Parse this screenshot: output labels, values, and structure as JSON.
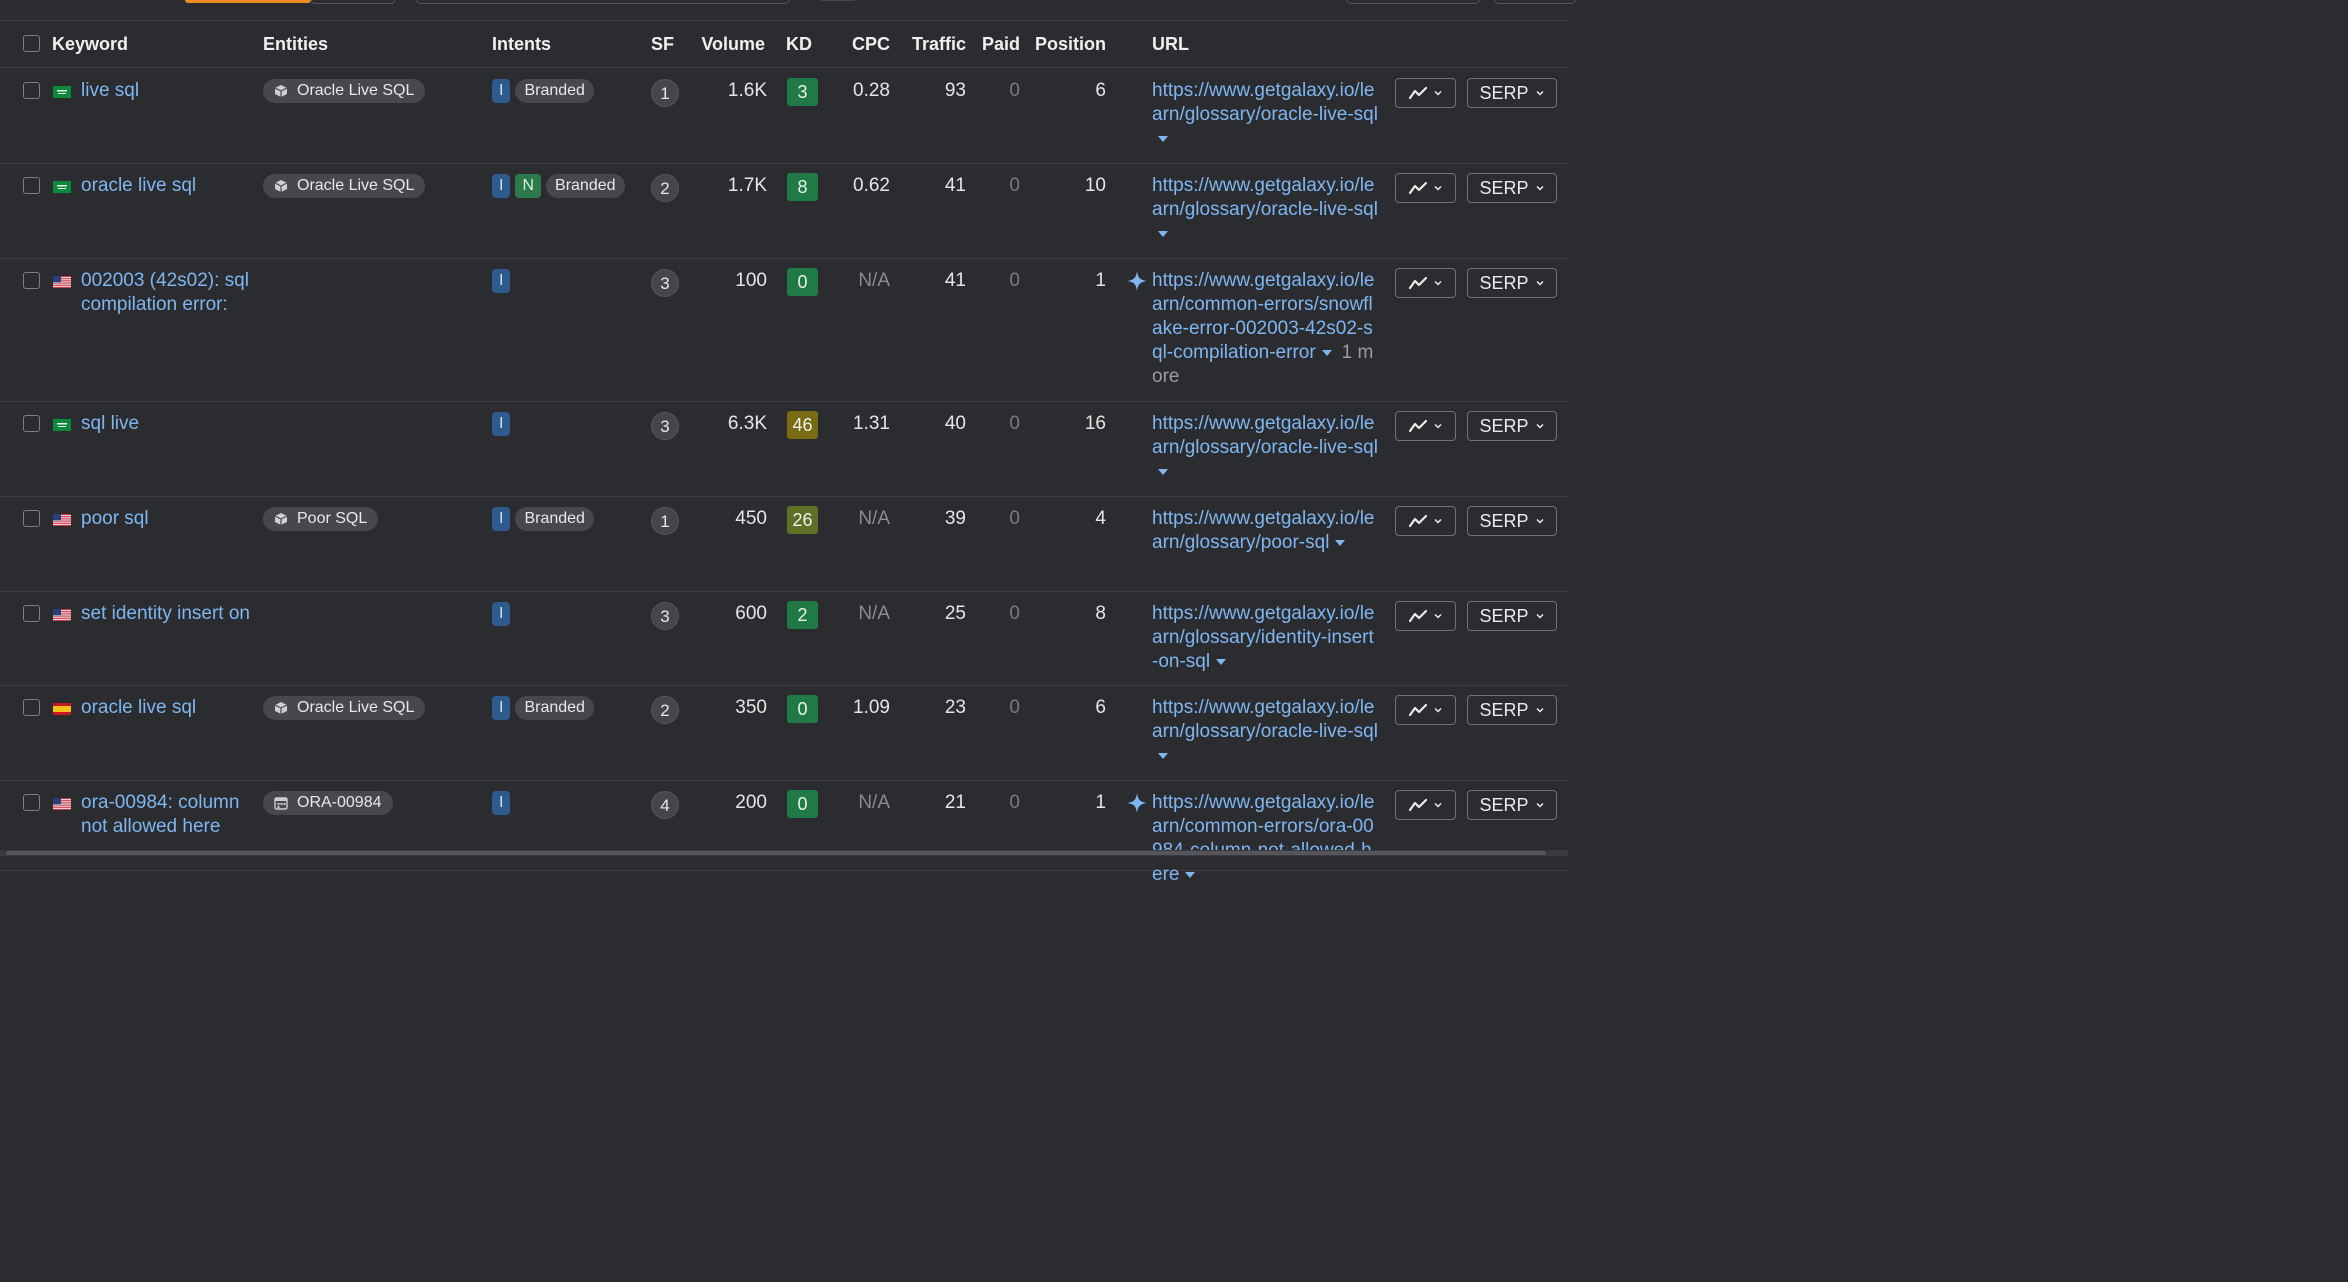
{
  "columns": {
    "keyword": "Keyword",
    "entities": "Entities",
    "intents": "Intents",
    "sf": "SF",
    "volume": "Volume",
    "kd": "KD",
    "cpc": "CPC",
    "traffic": "Traffic",
    "paid": "Paid",
    "position": "Position",
    "url": "URL"
  },
  "serp_label": "SERP",
  "colors": {
    "link": "#7fb6f0",
    "kd_easy": "#1f7a45",
    "kd_medium": "#5f6f25",
    "kd_hard": "#7a6a12",
    "intent_informational": "#2f5a8d",
    "intent_navigational": "#2c7a4b"
  },
  "rows": [
    {
      "flag": "saudi-arabia",
      "keyword": "live sql",
      "entity": "Oracle Live SQL",
      "entity_icon": "cube-icon",
      "intents": [
        "I",
        "Branded"
      ],
      "sf": "1",
      "volume": "1.6K",
      "kd": "3",
      "kd_level": "easy",
      "cpc": "0.28",
      "traffic": "93",
      "paid": "0",
      "position": "6",
      "ai": false,
      "url": "https://www.getgalaxy.io/learn/glossary/oracle-live-sql",
      "more": ""
    },
    {
      "flag": "saudi-arabia",
      "keyword": "oracle live sql",
      "entity": "Oracle Live SQL",
      "entity_icon": "cube-icon",
      "intents": [
        "I",
        "N",
        "Branded"
      ],
      "sf": "2",
      "volume": "1.7K",
      "kd": "8",
      "kd_level": "easy",
      "cpc": "0.62",
      "traffic": "41",
      "paid": "0",
      "position": "10",
      "ai": false,
      "url": "https://www.getgalaxy.io/learn/glossary/oracle-live-sql",
      "more": ""
    },
    {
      "flag": "usa",
      "keyword": "002003 (42s02): sql compilation error:",
      "entity": "",
      "entity_icon": "",
      "intents": [
        "I"
      ],
      "sf": "3",
      "volume": "100",
      "kd": "0",
      "kd_level": "easy",
      "cpc": "N/A",
      "traffic": "41",
      "paid": "0",
      "position": "1",
      "ai": true,
      "url": "https://www.getgalaxy.io/learn/common-errors/snowflake-error-002003-42s02-sql-compilation-error",
      "more": "1 more"
    },
    {
      "flag": "saudi-arabia",
      "keyword": "sql live",
      "entity": "",
      "entity_icon": "",
      "intents": [
        "I"
      ],
      "sf": "3",
      "volume": "6.3K",
      "kd": "46",
      "kd_level": "hard",
      "cpc": "1.31",
      "traffic": "40",
      "paid": "0",
      "position": "16",
      "ai": false,
      "url": "https://www.getgalaxy.io/learn/glossary/oracle-live-sql",
      "more": ""
    },
    {
      "flag": "usa",
      "keyword": "poor sql",
      "entity": "Poor SQL",
      "entity_icon": "cube-icon",
      "intents": [
        "I",
        "Branded"
      ],
      "sf": "1",
      "volume": "450",
      "kd": "26",
      "kd_level": "medium",
      "cpc": "N/A",
      "traffic": "39",
      "paid": "0",
      "position": "4",
      "ai": false,
      "url": "https://www.getgalaxy.io/learn/glossary/poor-sql",
      "more": ""
    },
    {
      "flag": "usa",
      "keyword": "set identity insert on",
      "entity": "",
      "entity_icon": "",
      "intents": [
        "I"
      ],
      "sf": "3",
      "volume": "600",
      "kd": "2",
      "kd_level": "easy",
      "cpc": "N/A",
      "traffic": "25",
      "paid": "0",
      "position": "8",
      "ai": false,
      "url": "https://www.getgalaxy.io/learn/glossary/identity-insert-on-sql",
      "more": ""
    },
    {
      "flag": "spain",
      "keyword": "oracle live sql",
      "entity": "Oracle Live SQL",
      "entity_icon": "cube-icon",
      "intents": [
        "I",
        "Branded"
      ],
      "sf": "2",
      "volume": "350",
      "kd": "0",
      "kd_level": "easy",
      "cpc": "1.09",
      "traffic": "23",
      "paid": "0",
      "position": "6",
      "ai": false,
      "url": "https://www.getgalaxy.io/learn/glossary/oracle-live-sql",
      "more": ""
    },
    {
      "flag": "usa",
      "keyword": "ora-00984: column not allowed here",
      "entity": "ORA-00984",
      "entity_icon": "calendar-icon",
      "intents": [
        "I"
      ],
      "sf": "4",
      "volume": "200",
      "kd": "0",
      "kd_level": "easy",
      "cpc": "N/A",
      "traffic": "21",
      "paid": "0",
      "position": "1",
      "ai": true,
      "url": "https://www.getgalaxy.io/learn/common-errors/ora-00984-column-not-allowed-here",
      "more": ""
    }
  ]
}
